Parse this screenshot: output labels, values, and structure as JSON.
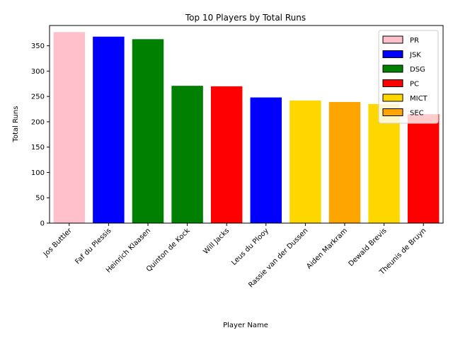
{
  "chart_data": {
    "type": "bar",
    "title": "Top 10 Players by Total Runs",
    "xlabel": "Player Name",
    "ylabel": "Total Runs",
    "ylim": [
      0,
      390
    ],
    "yticks": [
      0,
      50,
      100,
      150,
      200,
      250,
      300,
      350
    ],
    "categories": [
      "Jos Buttler",
      "Faf du Plessis",
      "Heinrich Klaasen",
      "Quinton de Kock",
      "Will Jacks",
      "Leus du Plooy",
      "Rassie van der Dussen",
      "Aiden Markram",
      "Dewald Brevis",
      "Theunis de Bruyn"
    ],
    "values": [
      377,
      368,
      363,
      271,
      270,
      248,
      242,
      239,
      235,
      215
    ],
    "teams": [
      "PR",
      "JSK",
      "DSG",
      "DSG",
      "PC",
      "JSK",
      "MICT",
      "SEC",
      "MICT",
      "PC"
    ],
    "legend": {
      "position": "upper-right",
      "entries": [
        {
          "label": "PR",
          "color": "#ffc0cb"
        },
        {
          "label": "JSK",
          "color": "#0000ff"
        },
        {
          "label": "DSG",
          "color": "#008000"
        },
        {
          "label": "PC",
          "color": "#ff0000"
        },
        {
          "label": "MICT",
          "color": "#ffd700"
        },
        {
          "label": "SEC",
          "color": "#ffa500"
        }
      ]
    },
    "grid": false
  }
}
